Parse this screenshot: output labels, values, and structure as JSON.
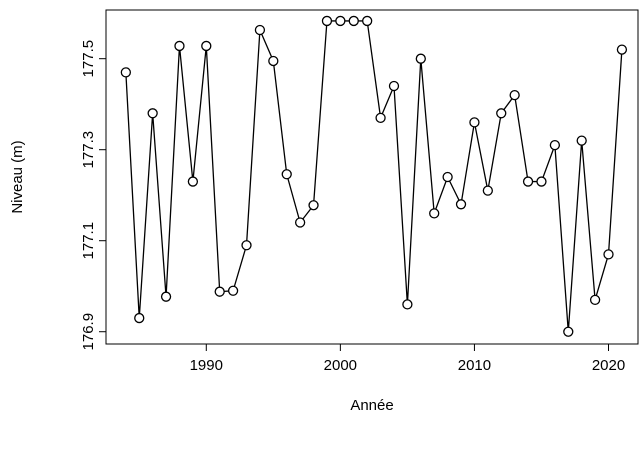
{
  "chart_data": {
    "type": "line",
    "x_label": "Année",
    "y_label": "Niveau (m)",
    "x": [
      1984,
      1985,
      1986,
      1987,
      1988,
      1989,
      1990,
      1991,
      1992,
      1993,
      1994,
      1995,
      1996,
      1997,
      1998,
      1999,
      2000,
      2001,
      2002,
      2003,
      2004,
      2005,
      2006,
      2007,
      2008,
      2009,
      2010,
      2011,
      2012,
      2013,
      2014,
      2015,
      2016,
      2017,
      2018,
      2019,
      2020,
      2021
    ],
    "series": [
      {
        "name": "Niveau",
        "color": "#000000",
        "values": [
          177.47,
          176.93,
          177.38,
          176.977,
          177.528,
          177.23,
          177.528,
          176.988,
          176.99,
          177.09,
          177.563,
          177.495,
          177.246,
          177.14,
          177.178,
          177.583,
          177.583,
          177.583,
          177.583,
          177.37,
          177.44,
          176.96,
          177.5,
          177.16,
          177.24,
          177.18,
          177.36,
          177.21,
          177.38,
          177.42,
          177.23,
          177.23,
          177.31,
          176.9,
          177.32,
          176.97,
          177.07,
          177.52
        ]
      }
    ],
    "xlim": [
      1982.52,
      2022.2
    ],
    "ylim": [
      176.873,
      177.607
    ],
    "xticks": [
      1990,
      2000,
      2010,
      2020
    ],
    "yticks": [
      176.9,
      177.1,
      177.3,
      177.5
    ]
  }
}
